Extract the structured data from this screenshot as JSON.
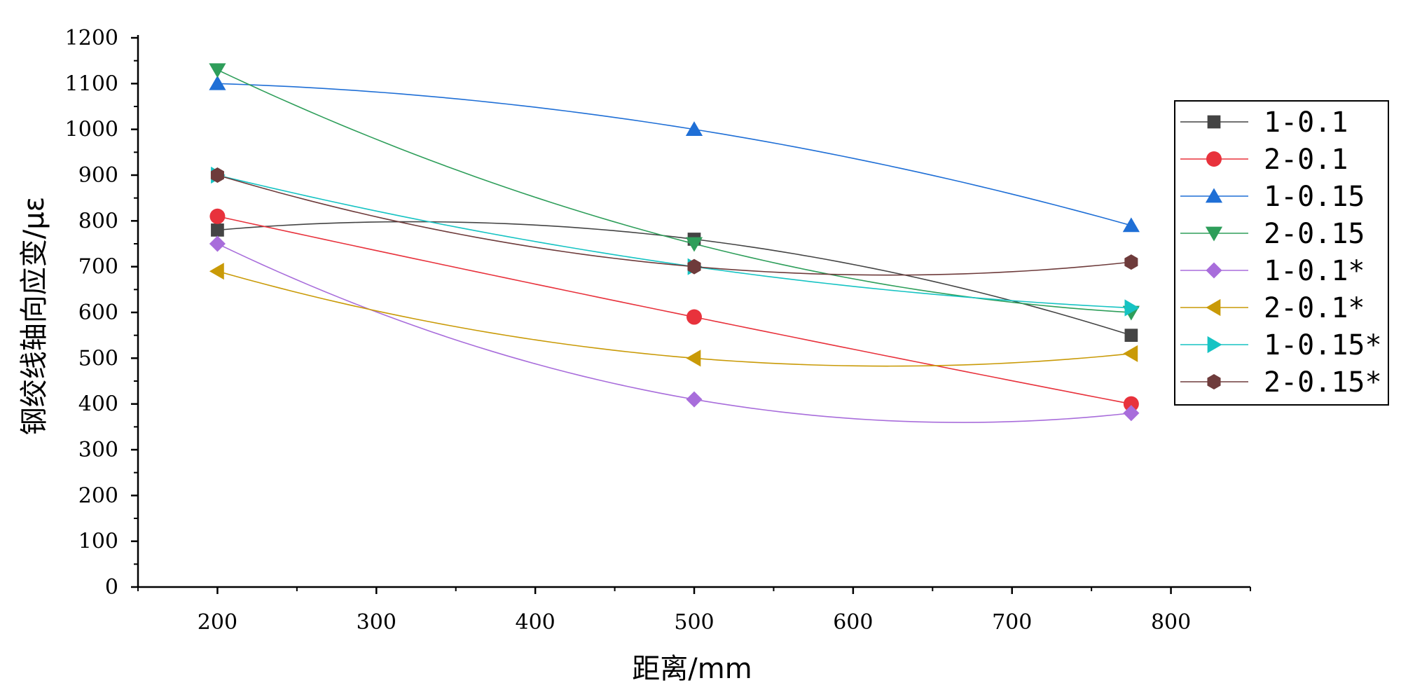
{
  "chart_data": {
    "type": "line",
    "title": "",
    "xlabel": "距离/mm",
    "ylabel": "钢绞线轴向应变/με",
    "xlim": [
      150,
      850
    ],
    "ylim": [
      0,
      1200
    ],
    "x_ticks": [
      "200",
      "300",
      "400",
      "500",
      "600",
      "700",
      "800"
    ],
    "y_ticks": [
      "0",
      "100",
      "200",
      "300",
      "400",
      "500",
      "600",
      "700",
      "800",
      "900",
      "1000",
      "1100",
      "1200"
    ],
    "x": [
      200,
      500,
      775
    ],
    "legend_position": "right",
    "series": [
      {
        "name": "1-0.1",
        "values": [
          780,
          760,
          550
        ],
        "color": "#444444",
        "marker": "square"
      },
      {
        "name": "2-0.1",
        "values": [
          810,
          590,
          400
        ],
        "color": "#e8323c",
        "marker": "circle"
      },
      {
        "name": "1-0.15",
        "values": [
          1100,
          1000,
          790
        ],
        "color": "#1f6fd6",
        "marker": "triangle-up"
      },
      {
        "name": "2-0.15",
        "values": [
          1130,
          750,
          600
        ],
        "color": "#2e9e5a",
        "marker": "triangle-down"
      },
      {
        "name": "1-0.1*",
        "values": [
          750,
          410,
          380
        ],
        "color": "#a86ddb",
        "marker": "diamond"
      },
      {
        "name": "2-0.1*",
        "values": [
          690,
          500,
          510
        ],
        "color": "#c99a07",
        "marker": "triangle-left"
      },
      {
        "name": "1-0.15*",
        "values": [
          900,
          700,
          610
        ],
        "color": "#16c3c3",
        "marker": "triangle-right"
      },
      {
        "name": "2-0.15*",
        "values": [
          900,
          700,
          710
        ],
        "color": "#6e3b3b",
        "marker": "hexagon"
      }
    ]
  }
}
